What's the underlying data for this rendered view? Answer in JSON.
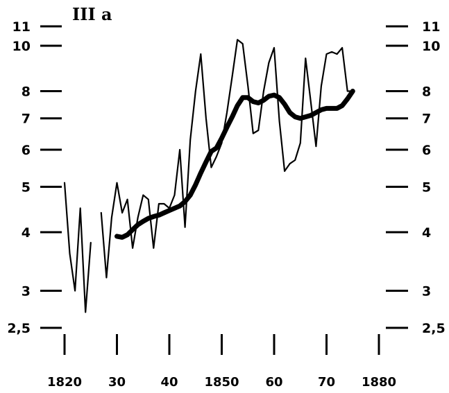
{
  "chart_data": {
    "type": "line",
    "title": "III a",
    "xlabel": "",
    "ylabel": "",
    "y_scale": "log",
    "xlim": [
      1820,
      1880
    ],
    "ylim": [
      2.5,
      11
    ],
    "grid": false,
    "x_tick_labels": [
      {
        "value": 1820,
        "label": "1820"
      },
      {
        "value": 1830,
        "label": "30"
      },
      {
        "value": 1840,
        "label": "40"
      },
      {
        "value": 1850,
        "label": "1850"
      },
      {
        "value": 1860,
        "label": "60"
      },
      {
        "value": 1870,
        "label": "70"
      },
      {
        "value": 1880,
        "label": "1880"
      }
    ],
    "y_tick_labels": [
      {
        "value": 11,
        "label": "11"
      },
      {
        "value": 10,
        "label": "10"
      },
      {
        "value": 8,
        "label": "8"
      },
      {
        "value": 7,
        "label": "7"
      },
      {
        "value": 6,
        "label": "6"
      },
      {
        "value": 5,
        "label": "5"
      },
      {
        "value": 4,
        "label": "4"
      },
      {
        "value": 3,
        "label": "3"
      },
      {
        "value": 2.5,
        "label": "2,5"
      }
    ],
    "series": [
      {
        "style": "thin",
        "segments": [
          {
            "x": [
              1820,
              1821,
              1822,
              1823,
              1824,
              1825
            ],
            "y": [
              5.1,
              3.6,
              3.0,
              4.5,
              2.7,
              3.8
            ]
          },
          {
            "x": [
              1827,
              1828,
              1829,
              1830,
              1831,
              1832,
              1833,
              1834,
              1835,
              1836,
              1837,
              1838,
              1839,
              1840,
              1841,
              1842,
              1843,
              1844,
              1845,
              1846,
              1847,
              1848,
              1849,
              1850,
              1851,
              1852,
              1853,
              1854,
              1855,
              1856,
              1857,
              1858,
              1859,
              1860,
              1861,
              1862,
              1863,
              1864,
              1865,
              1866,
              1867,
              1868,
              1869,
              1870,
              1871,
              1872,
              1873,
              1874,
              1875
            ],
            "y": [
              4.4,
              3.2,
              4.3,
              5.1,
              4.4,
              4.7,
              3.7,
              4.3,
              4.8,
              4.7,
              3.7,
              4.6,
              4.6,
              4.5,
              4.8,
              6.0,
              4.1,
              6.3,
              8.0,
              9.6,
              7.0,
              5.5,
              5.8,
              6.2,
              7.2,
              8.6,
              10.3,
              10.1,
              8.2,
              6.5,
              6.6,
              8.0,
              9.2,
              9.9,
              6.9,
              5.4,
              5.6,
              5.7,
              6.2,
              9.4,
              7.6,
              6.1,
              8.2,
              9.6,
              9.7,
              9.6,
              9.9,
              8.0,
              8.0
            ]
          }
        ]
      },
      {
        "style": "thick",
        "segments": [
          {
            "x": [
              1830,
              1831,
              1832,
              1833,
              1834,
              1835,
              1836,
              1837,
              1838,
              1839,
              1840,
              1841,
              1842,
              1843,
              1844,
              1845,
              1846,
              1847,
              1848,
              1849,
              1850,
              1851,
              1852,
              1853,
              1854,
              1855,
              1856,
              1857,
              1858,
              1859,
              1860,
              1861,
              1862,
              1863,
              1864,
              1865,
              1866,
              1867,
              1868,
              1869,
              1870,
              1871,
              1872,
              1873,
              1874,
              1875
            ],
            "y": [
              3.92,
              3.9,
              3.95,
              4.05,
              4.15,
              4.22,
              4.28,
              4.32,
              4.35,
              4.4,
              4.45,
              4.5,
              4.55,
              4.65,
              4.8,
              5.05,
              5.35,
              5.65,
              5.95,
              6.05,
              6.35,
              6.7,
              7.05,
              7.45,
              7.75,
              7.75,
              7.6,
              7.55,
              7.65,
              7.8,
              7.85,
              7.75,
              7.5,
              7.2,
              7.05,
              7.0,
              7.05,
              7.1,
              7.2,
              7.3,
              7.35,
              7.35,
              7.35,
              7.45,
              7.7,
              8.0
            ]
          }
        ]
      }
    ]
  }
}
